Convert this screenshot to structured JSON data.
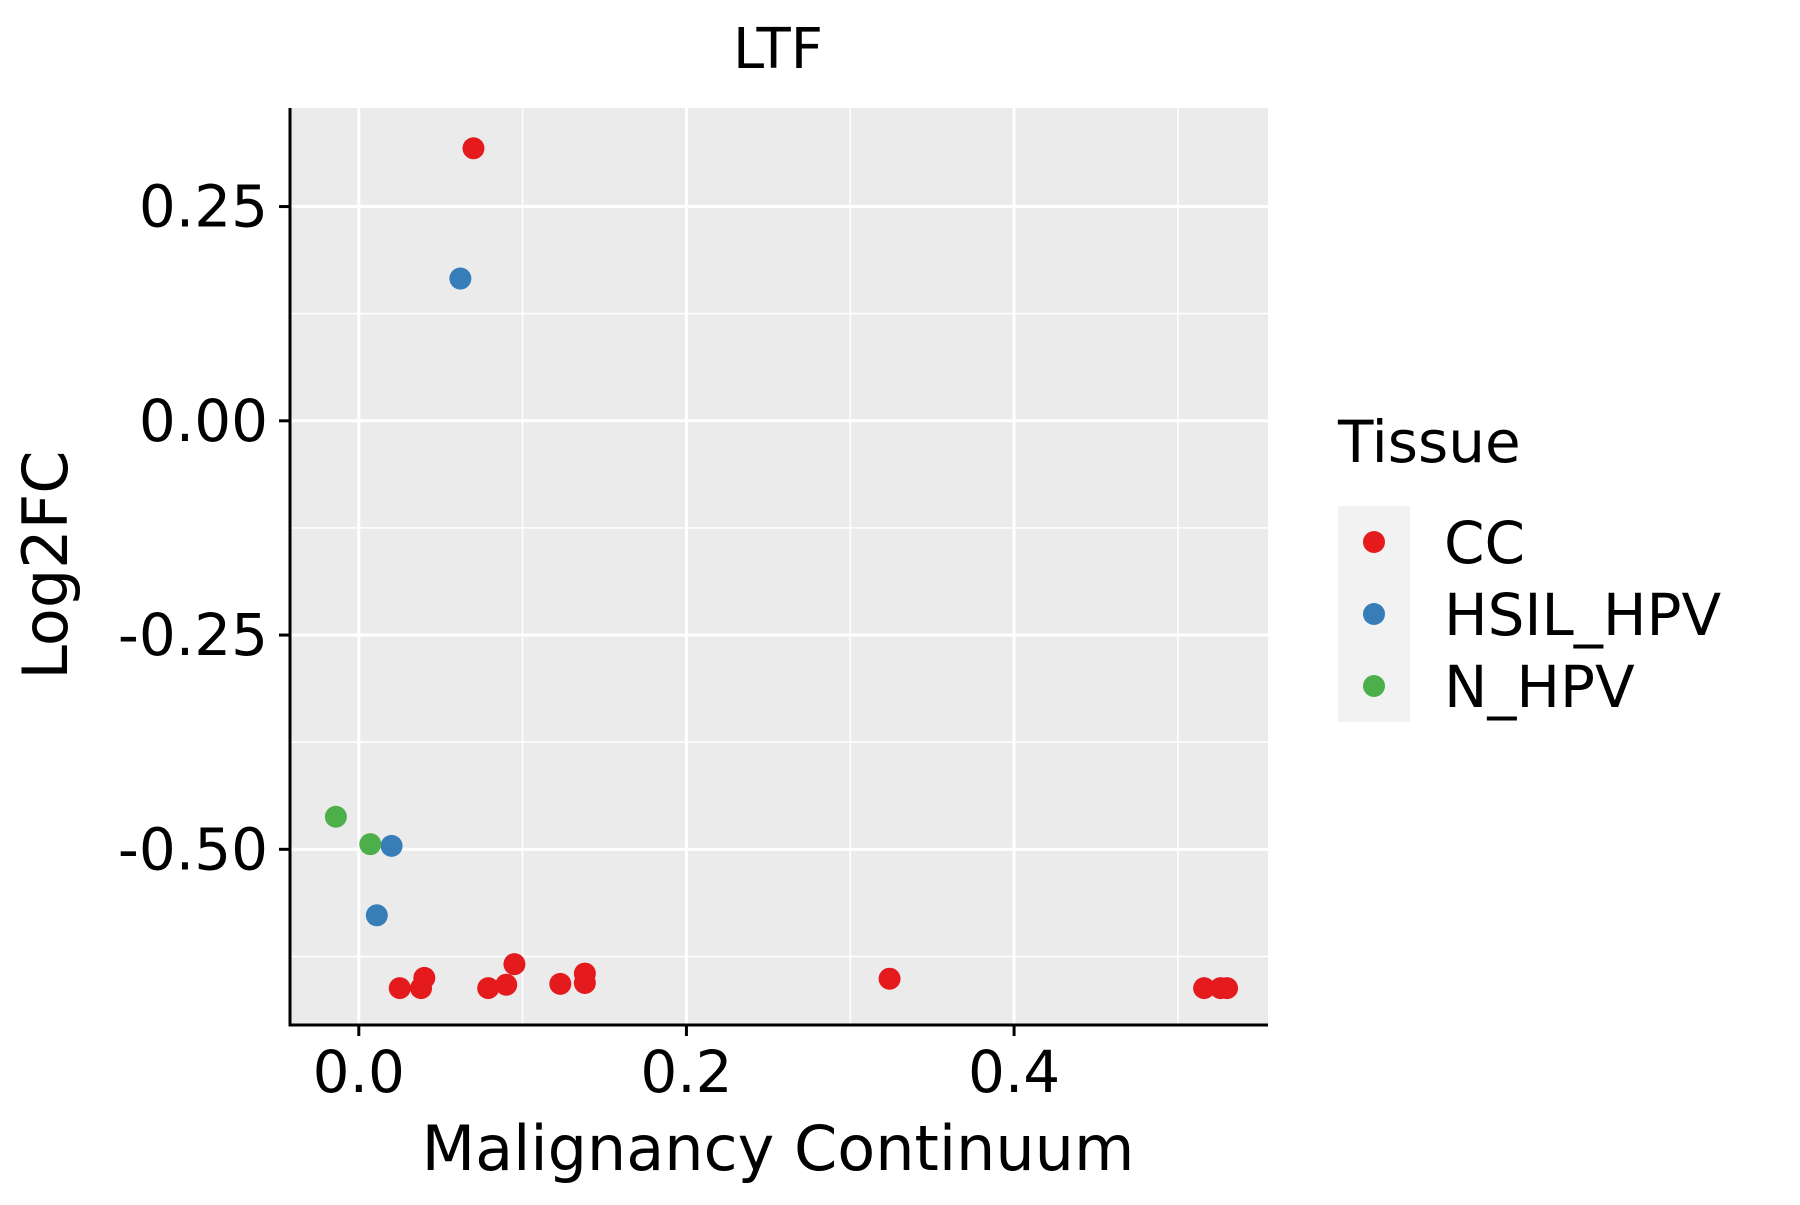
{
  "chart_data": {
    "type": "scatter",
    "title": "LTF",
    "xlabel": "Malignancy Continuum",
    "ylabel": "Log2FC",
    "xlim": [
      -0.042,
      0.555
    ],
    "ylim": [
      -0.705,
      0.365
    ],
    "x_ticks": [
      0.0,
      0.2,
      0.4
    ],
    "x_tick_labels": [
      "0.0",
      "0.2",
      "0.4"
    ],
    "x_minor_ticks": [
      0.1,
      0.3,
      0.5
    ],
    "y_ticks": [
      0.25,
      0.0,
      -0.25,
      -0.5
    ],
    "y_tick_labels": [
      "0.25",
      "0.00",
      "-0.25",
      "-0.50"
    ],
    "y_minor_ticks": [
      0.125,
      -0.125,
      -0.375,
      -0.625
    ],
    "grid": true,
    "legend": {
      "title": "Tissue",
      "position": "right",
      "entries": [
        {
          "label": "CC",
          "color": "#E41A1C"
        },
        {
          "label": "HSIL_HPV",
          "color": "#377EB8"
        },
        {
          "label": "N_HPV",
          "color": "#4DAF4A"
        }
      ]
    },
    "series": [
      {
        "name": "CC",
        "color": "#E41A1C",
        "points": [
          {
            "x": 0.07,
            "y": 0.318
          },
          {
            "x": 0.025,
            "y": -0.662
          },
          {
            "x": 0.038,
            "y": -0.662
          },
          {
            "x": 0.04,
            "y": -0.65
          },
          {
            "x": 0.079,
            "y": -0.662
          },
          {
            "x": 0.09,
            "y": -0.658
          },
          {
            "x": 0.095,
            "y": -0.634
          },
          {
            "x": 0.123,
            "y": -0.657
          },
          {
            "x": 0.138,
            "y": -0.645
          },
          {
            "x": 0.138,
            "y": -0.656
          },
          {
            "x": 0.324,
            "y": -0.651
          },
          {
            "x": 0.516,
            "y": -0.662
          },
          {
            "x": 0.526,
            "y": -0.662
          },
          {
            "x": 0.53,
            "y": -0.662
          }
        ]
      },
      {
        "name": "HSIL_HPV",
        "color": "#377EB8",
        "points": [
          {
            "x": 0.062,
            "y": 0.166
          },
          {
            "x": 0.02,
            "y": -0.496
          },
          {
            "x": 0.011,
            "y": -0.577
          }
        ]
      },
      {
        "name": "N_HPV",
        "color": "#4DAF4A",
        "points": [
          {
            "x": -0.014,
            "y": -0.462
          },
          {
            "x": 0.007,
            "y": -0.494
          }
        ]
      }
    ]
  }
}
